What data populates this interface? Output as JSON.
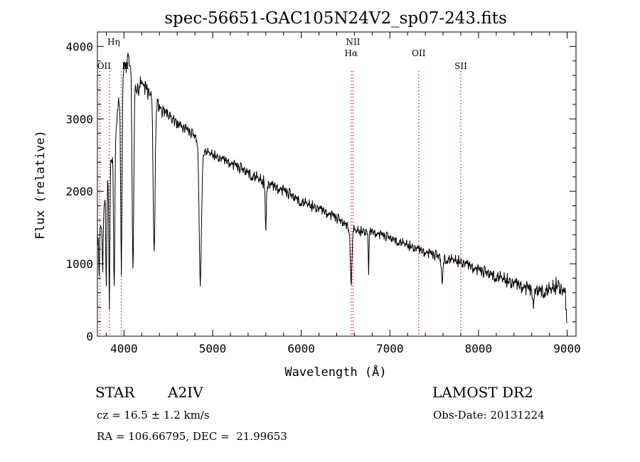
{
  "chart_data": {
    "type": "line",
    "title": "spec-56651-GAC105N24V2_sp07-243.fits",
    "xlabel": "Wavelength (Å)",
    "ylabel": "Flux (relative)",
    "xlim": [
      3700,
      9100
    ],
    "ylim": [
      0,
      4200
    ],
    "xticks": [
      4000,
      5000,
      6000,
      7000,
      8000,
      9000
    ],
    "yticks": [
      0,
      1000,
      2000,
      3000,
      4000
    ],
    "grid": false,
    "line_markers": [
      {
        "label": "OII",
        "x": 3727,
        "tier": 3
      },
      {
        "label": "Hη",
        "x": 3835,
        "tier": 1
      },
      {
        "label": "H",
        "x": 3969,
        "tier": 3
      },
      {
        "label": "NII",
        "x": 6584,
        "tier": 1
      },
      {
        "label": "Hα",
        "x": 6563,
        "tier": 2
      },
      {
        "label": "OII",
        "x": 7325,
        "tier": 2
      },
      {
        "label": "SII",
        "x": 7800,
        "tier": 3
      }
    ],
    "continuum": [
      [
        3700,
        1300
      ],
      [
        3760,
        1700
      ],
      [
        3830,
        2200
      ],
      [
        3900,
        2800
      ],
      [
        3950,
        3300
      ],
      [
        4000,
        3650
      ],
      [
        4050,
        3850
      ],
      [
        4100,
        3600
      ],
      [
        4150,
        3350
      ],
      [
        4200,
        3500
      ],
      [
        4300,
        3350
      ],
      [
        4400,
        3150
      ],
      [
        4500,
        3050
      ],
      [
        4600,
        2950
      ],
      [
        4700,
        2850
      ],
      [
        4800,
        2750
      ],
      [
        4900,
        2550
      ],
      [
        5000,
        2500
      ],
      [
        5200,
        2380
      ],
      [
        5400,
        2250
      ],
      [
        5600,
        2100
      ],
      [
        5800,
        2000
      ],
      [
        6000,
        1850
      ],
      [
        6200,
        1750
      ],
      [
        6400,
        1620
      ],
      [
        6600,
        1450
      ],
      [
        6800,
        1430
      ],
      [
        7000,
        1350
      ],
      [
        7200,
        1250
      ],
      [
        7400,
        1150
      ],
      [
        7600,
        1070
      ],
      [
        7800,
        1020
      ],
      [
        8000,
        900
      ],
      [
        8200,
        820
      ],
      [
        8400,
        720
      ],
      [
        8600,
        620
      ],
      [
        8800,
        620
      ],
      [
        8900,
        700
      ],
      [
        8980,
        550
      ],
      [
        9000,
        80
      ]
    ],
    "absorption_features": [
      {
        "x": 3720,
        "depth": 700,
        "width": 6
      },
      {
        "x": 3760,
        "depth": 900,
        "width": 6
      },
      {
        "x": 3800,
        "depth": 1400,
        "width": 7
      },
      {
        "x": 3835,
        "depth": 1800,
        "width": 8
      },
      {
        "x": 3889,
        "depth": 2100,
        "width": 10
      },
      {
        "x": 3970,
        "depth": 2500,
        "width": 11
      },
      {
        "x": 4101,
        "depth": 2650,
        "width": 13
      },
      {
        "x": 4340,
        "depth": 2150,
        "width": 15
      },
      {
        "x": 4861,
        "depth": 1900,
        "width": 18
      },
      {
        "x": 5600,
        "depth": 700,
        "width": 8
      },
      {
        "x": 6563,
        "depth": 800,
        "width": 12
      },
      {
        "x": 6760,
        "depth": 600,
        "width": 6
      },
      {
        "x": 7590,
        "depth": 350,
        "width": 12
      },
      {
        "x": 8620,
        "depth": 350,
        "width": 8
      }
    ],
    "noise_amplitude": [
      [
        3700,
        220
      ],
      [
        4000,
        200
      ],
      [
        4500,
        130
      ],
      [
        5000,
        110
      ],
      [
        5500,
        150
      ],
      [
        6000,
        130
      ],
      [
        7000,
        110
      ],
      [
        8000,
        140
      ],
      [
        8600,
        180
      ],
      [
        9000,
        200
      ]
    ]
  },
  "info": {
    "object_class": "STAR",
    "subclass": "A2IV",
    "survey": "LAMOST DR2",
    "redshift": "cz = 16.5 ± 1.2 km/s",
    "obs_date": "Obs-Date: 20131224",
    "coords": "RA = 106.66795, DEC =  21.99653"
  }
}
